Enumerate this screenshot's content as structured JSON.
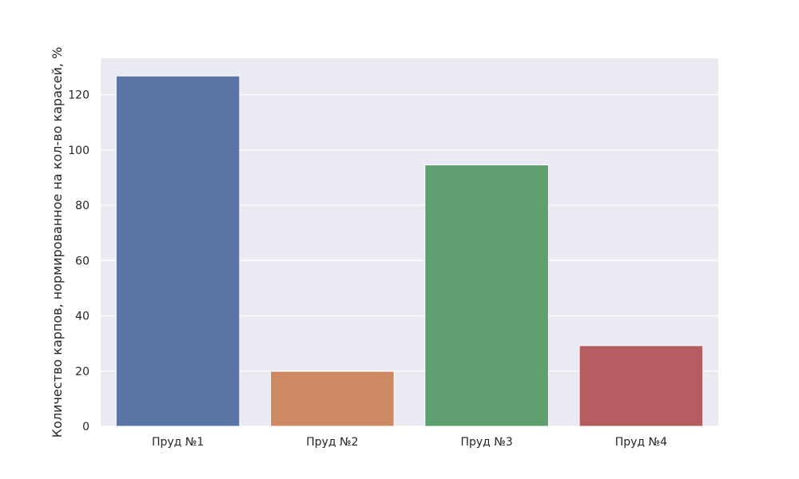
{
  "chart_data": {
    "type": "bar",
    "categories": [
      "Пруд №1",
      "Пруд №2",
      "Пруд №3",
      "Пруд №4"
    ],
    "values": [
      126.8,
      19.9,
      94.6,
      29.2
    ],
    "colors": [
      "#5875a4",
      "#cc8963",
      "#5f9e6e",
      "#b55d60"
    ],
    "title": "",
    "xlabel": "",
    "ylabel": "Количество карпов, нормированное на кол-во карасей, %",
    "ylim": [
      0,
      133.2
    ],
    "yticks": [
      0,
      20,
      40,
      60,
      80,
      100,
      120
    ],
    "grid": true,
    "background": "#eaeaf2",
    "grid_color": "#ffffff"
  }
}
